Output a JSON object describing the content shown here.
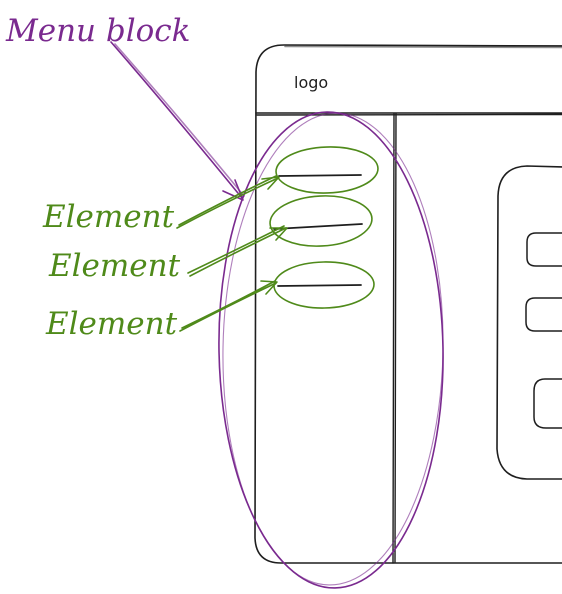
{
  "wireframe": {
    "logo_label": "logo"
  },
  "annotations": {
    "menu_block_label": "Menu block",
    "element_labels": [
      "Element",
      "Element",
      "Element"
    ]
  },
  "colors": {
    "wireframe_stroke": "#1e1e1e",
    "menu_annotation": "#7a2a8f",
    "element_annotation": "#4f8a1a"
  }
}
